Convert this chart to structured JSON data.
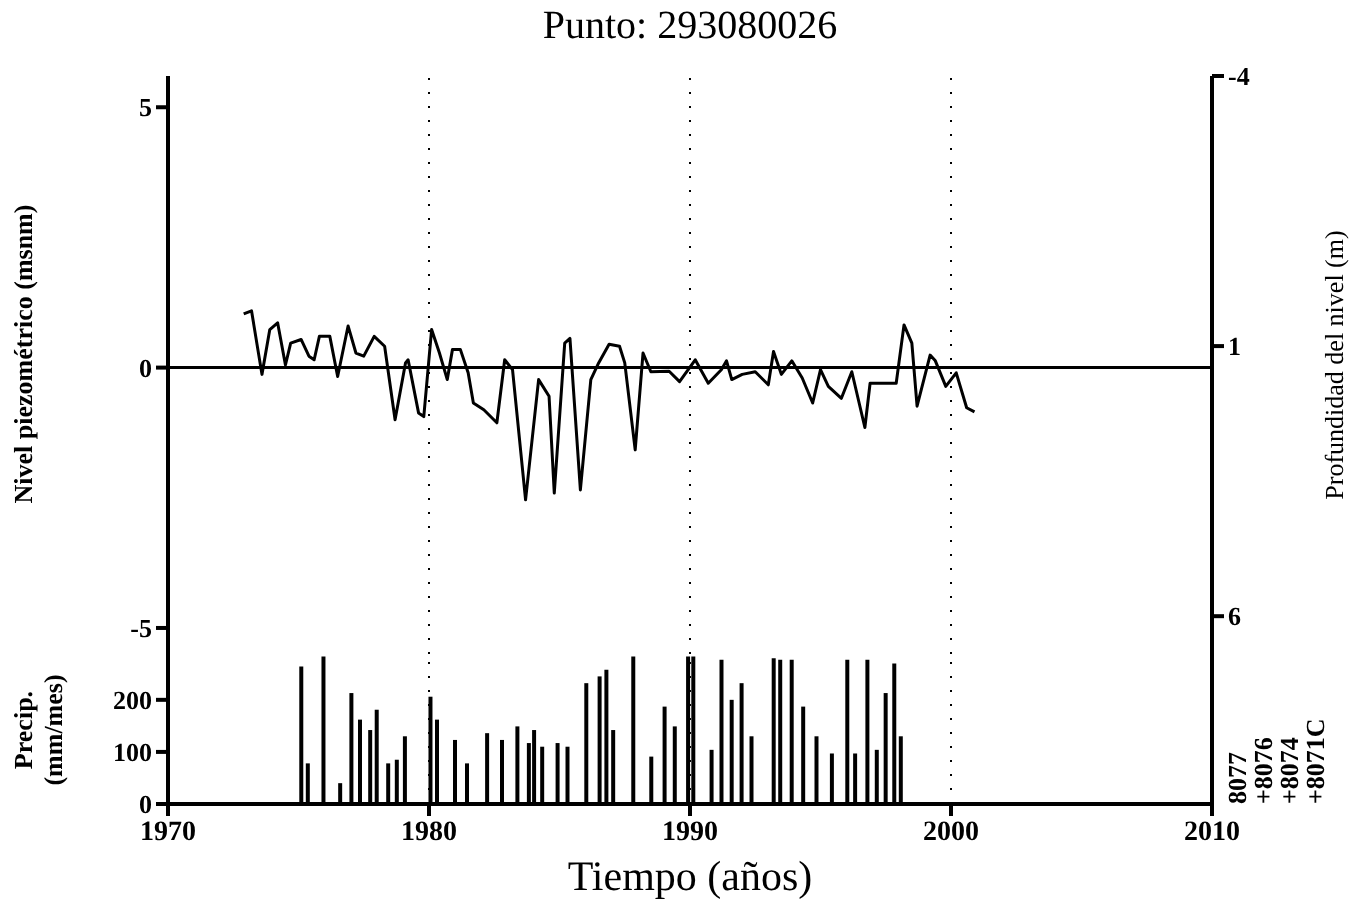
{
  "chart_data": [
    {
      "type": "line",
      "title": "Punto: 293080026",
      "ylabel": "Nivel piezométrico (msnm)",
      "y2label": "Profundidad del nivel (m)",
      "x": [
        1972.9,
        1973.2,
        1973.6,
        1973.9,
        1974.2,
        1974.5,
        1974.7,
        1975.1,
        1975.4,
        1975.6,
        1975.8,
        1976.2,
        1976.5,
        1976.9,
        1977.2,
        1977.5,
        1977.9,
        1978.3,
        1978.7,
        1979.1,
        1979.2,
        1979.6,
        1979.8,
        1980.1,
        1980.4,
        1980.7,
        1980.9,
        1981.2,
        1981.5,
        1981.7,
        1982.1,
        1982.6,
        1982.9,
        1983.2,
        1983.7,
        1984.2,
        1984.6,
        1984.8,
        1985.2,
        1985.4,
        1985.8,
        1986.2,
        1986.5,
        1986.9,
        1987.3,
        1987.5,
        1987.9,
        1988.2,
        1988.5,
        1989.2,
        1989.6,
        1990.2,
        1990.7,
        1991.2,
        1991.4,
        1991.6,
        1992.0,
        1992.5,
        1993.0,
        1993.2,
        1993.5,
        1993.9,
        1994.3,
        1994.7,
        1995.0,
        1995.3,
        1995.8,
        1996.2,
        1996.7,
        1996.9,
        1997.9,
        1998.2,
        1998.5,
        1998.7,
        1999.2,
        1999.4,
        1999.8,
        2000.2,
        2000.6,
        2000.9
      ],
      "series": [
        {
          "color": "#000000",
          "values": [
            1.03,
            1.09,
            -0.13,
            0.73,
            0.86,
            0.05,
            0.47,
            0.54,
            0.22,
            0.15,
            0.6,
            0.6,
            -0.17,
            0.8,
            0.28,
            0.22,
            0.6,
            0.41,
            -1.0,
            0.09,
            0.15,
            -0.87,
            -0.94,
            0.73,
            0.28,
            -0.23,
            0.35,
            0.35,
            -0.1,
            -0.68,
            -0.81,
            -1.06,
            0.15,
            -0.04,
            -2.54,
            -0.23,
            -0.55,
            -2.41,
            0.47,
            0.56,
            -2.35,
            -0.23,
            0.09,
            0.45,
            0.41,
            0.09,
            -1.58,
            0.28,
            -0.08,
            -0.07,
            -0.27,
            0.15,
            -0.3,
            -0.04,
            0.13,
            -0.23,
            -0.13,
            -0.08,
            -0.33,
            0.31,
            -0.13,
            0.13,
            -0.2,
            -0.68,
            -0.04,
            -0.36,
            -0.59,
            -0.08,
            -1.15,
            -0.3,
            -0.3,
            0.82,
            0.47,
            -0.74,
            0.24,
            0.13,
            -0.36,
            -0.1,
            -0.77,
            -0.85
          ]
        }
      ],
      "xlim": [
        1970,
        2010
      ],
      "xticks": [
        1970,
        1980,
        1990,
        2000,
        2010
      ],
      "ylim": [
        -5.5,
        5.6
      ],
      "yticks": [
        5,
        0,
        -5
      ],
      "y2lim": [
        6.7,
        -4
      ],
      "y2ticks": [
        -4,
        1,
        6
      ],
      "ref_lines": [
        {
          "axis": "y",
          "value": 0,
          "color": "#000000",
          "line_style": "solid"
        }
      ],
      "grid": "x",
      "tick_labels": "y",
      "marker": "none",
      "line_style": "solid"
    },
    {
      "type": "bar",
      "xlabel": "Tiempo (años)",
      "ylabel": "Precip. (mm/mes)",
      "x": [
        1975.13,
        1975.38,
        1975.98,
        1976.62,
        1977.05,
        1977.38,
        1977.77,
        1978.02,
        1978.46,
        1978.79,
        1979.1,
        1980.08,
        1980.33,
        1981.02,
        1981.48,
        1982.25,
        1982.82,
        1983.41,
        1983.85,
        1984.05,
        1984.36,
        1984.95,
        1985.33,
        1986.05,
        1986.56,
        1986.82,
        1987.08,
        1987.85,
        1988.54,
        1989.05,
        1989.44,
        1989.95,
        1990.15,
        1990.85,
        1991.23,
        1991.62,
        1992.0,
        1992.38,
        1993.23,
        1993.48,
        1993.92,
        1994.36,
        1994.87,
        1995.46,
        1996.05,
        1996.35,
        1996.82,
        1997.18,
        1997.52,
        1997.85,
        1998.1
      ],
      "series": [
        {
          "color": "#000000",
          "values": [
            264,
            78,
            283,
            40,
            213,
            162,
            142,
            181,
            78,
            85,
            130,
            206,
            162,
            123,
            78,
            136,
            123,
            149,
            117,
            142,
            110,
            117,
            110,
            232,
            245,
            258,
            142,
            283,
            91,
            187,
            149,
            283,
            283,
            104,
            277,
            200,
            232,
            130,
            280,
            277,
            277,
            187,
            130,
            97,
            277,
            97,
            277,
            104,
            213,
            270,
            130
          ]
        }
      ],
      "xlim": [
        1970,
        2010
      ],
      "xticks": [
        1970,
        1980,
        1990,
        2000,
        2010
      ],
      "ylim": [
        0,
        288
      ],
      "yticks": [
        0,
        100,
        200
      ],
      "grid": "x",
      "annotations": [
        "8077",
        "+8076",
        "+8074",
        "+8071C"
      ]
    }
  ]
}
